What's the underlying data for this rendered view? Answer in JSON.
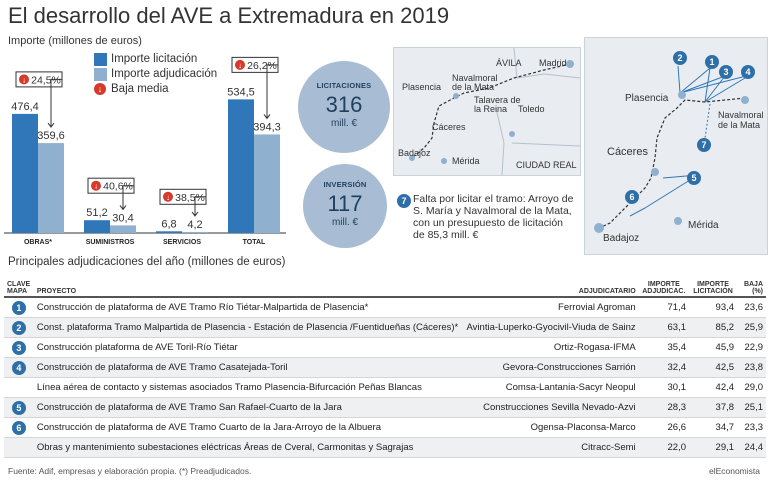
{
  "title": "El desarrollo del AVE a Extremadura en 2019",
  "subtitle": "Importe (millones de euros)",
  "legend": [
    {
      "label": "Importe licitación",
      "color": "#2f77b8"
    },
    {
      "label": "Importe adjudicación",
      "color": "#8fb0cf"
    },
    {
      "label": "Baja media",
      "icon": "down-arrow-icon"
    }
  ],
  "chart_data": {
    "type": "bar",
    "categories": [
      "OBRAS*",
      "SUMINISTROS",
      "SERVICIOS",
      "TOTAL"
    ],
    "series": [
      {
        "name": "Importe licitación",
        "values": [
          476.4,
          51.2,
          6.8,
          534.5
        ],
        "labels": [
          "476,4",
          "51,2",
          "6,8",
          "534,5"
        ],
        "color": "#2f77b8"
      },
      {
        "name": "Importe adjudicación",
        "values": [
          359.6,
          30.4,
          4.2,
          394.3
        ],
        "labels": [
          "359,6",
          "30,4",
          "4,2",
          "394,3"
        ],
        "color": "#8fb0cf"
      }
    ],
    "baja_media": [
      "24,5%",
      "40,6%",
      "38,5%",
      "26,2%"
    ],
    "ylim": [
      0,
      560
    ]
  },
  "bubbles": {
    "licitaciones": {
      "label": "LICITACIONES",
      "value": "316",
      "unit": "mill. €"
    },
    "inversion": {
      "label": "INVERSIÓN",
      "value": "117",
      "unit": "mill. €"
    }
  },
  "map_small": {
    "labels": [
      "Madrid",
      "ÁVILA",
      "Navalmoral de la Mata",
      "Plasencia",
      "Talavera de la Reina",
      "Toledo",
      "Cáceres",
      "Badajoz",
      "Mérida",
      "CIUDAD REAL"
    ]
  },
  "note": {
    "badge": "7",
    "text": "Falta por licitar el tramo: Arroyo de S. María y Navalmoral de la Mata, con un presupuesto de licitación de 85,3 mill. €"
  },
  "map_large": {
    "labels": [
      "Plasencia",
      "Navalmoral de la Mata",
      "Cáceres",
      "Mérida",
      "Badajoz"
    ],
    "markers": [
      "1",
      "2",
      "3",
      "4",
      "5",
      "6",
      "7"
    ]
  },
  "table": {
    "title": "Principales adjudicaciones del año (millones de euros)",
    "headers": {
      "clave": "CLAVE MAPA",
      "proyecto": "PROYECTO",
      "adjudicatario": "ADJUDICATARIO",
      "adjudicac": "IMPORTE ADJUDICAC.",
      "licitacion": "IMPORTE LICITACIÓN",
      "baja": "BAJA (%)"
    },
    "rows": [
      {
        "clave": "1",
        "proyecto": "Construcción de plataforma de AVE Tramo Río Tiétar-Malpartida de Plasencia*",
        "adjudicatario": "Ferrovial Agroman",
        "adjudicac": "71,4",
        "licitacion": "93,4",
        "baja": "23,6"
      },
      {
        "clave": "2",
        "proyecto": "Const. plataforma Tramo Malpartida de Plasencia - Estación de Plasencia /Fuentidueñas (Cáceres)*",
        "adjudicatario": "Avintia-Luperko-Gyocivil-Viuda de Sainz",
        "adjudicac": "63,1",
        "licitacion": "85,2",
        "baja": "25,9"
      },
      {
        "clave": "3",
        "proyecto": "Construcción plataforma de AVE Toril-Río Tiétar",
        "adjudicatario": "Ortiz-Rogasa-IFMA",
        "adjudicac": "35,4",
        "licitacion": "45,9",
        "baja": "22,9"
      },
      {
        "clave": "4",
        "proyecto": "Construcción de plataforma de AVE Tramo Casatejada-Toril",
        "adjudicatario": "Gevora-Construcciones Sarrión",
        "adjudicac": "32,4",
        "licitacion": "42,5",
        "baja": "23,8"
      },
      {
        "clave": "",
        "proyecto": "Línea aérea de contacto y sistemas asociados Tramo Plasencia-Bifurcación Peñas Blancas",
        "adjudicatario": "Comsa-Lantania-Sacyr Neopul",
        "adjudicac": "30,1",
        "licitacion": "42,4",
        "baja": "29,0"
      },
      {
        "clave": "5",
        "proyecto": "Construcción de plataforma de AVE Tramo San Rafael-Cuarto de la Jara",
        "adjudicatario": "Construcciones Sevilla Nevado-Azvi",
        "adjudicac": "28,3",
        "licitacion": "37,8",
        "baja": "25,1"
      },
      {
        "clave": "6",
        "proyecto": "Construcción de plataforma de AVE Tramo Cuarto de la Jara-Arroyo de la Albuera",
        "adjudicatario": "Ogensa-Placonsa-Marco",
        "adjudicac": "26,6",
        "licitacion": "34,7",
        "baja": "23,3"
      },
      {
        "clave": "",
        "proyecto": "Obras y mantenimiento subestaciones eléctricas Áreas de Cveral, Carmonitas y Sagrajas",
        "adjudicatario": "Citracc-Semi",
        "adjudicac": "22,0",
        "licitacion": "29,1",
        "baja": "24,4"
      }
    ]
  },
  "footer": "Fuente: Adif, empresas y elaboración propia. (*) Preadjudicados.",
  "brand": "elEconomista"
}
